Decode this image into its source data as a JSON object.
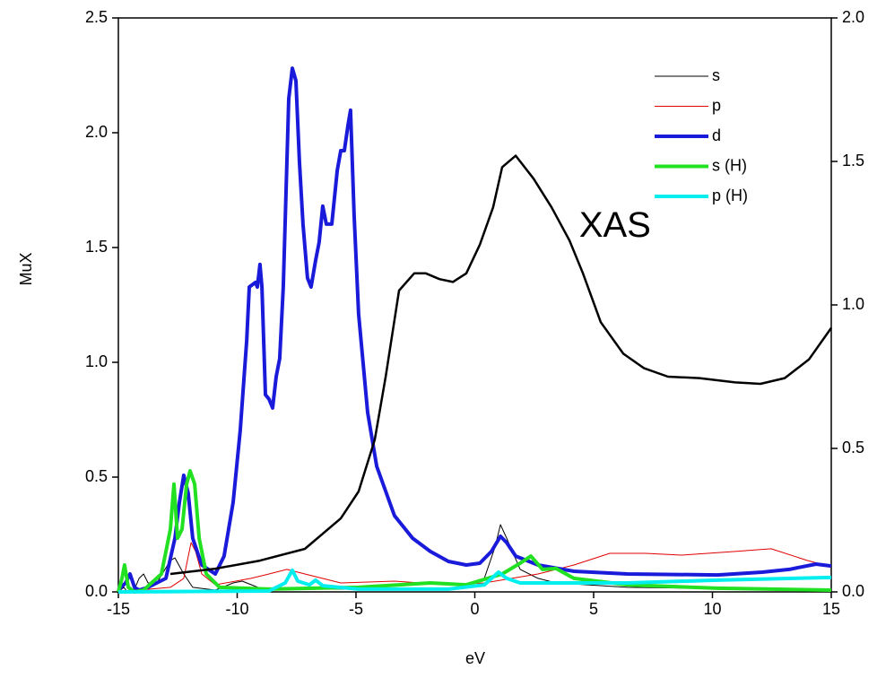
{
  "chart_data": {
    "type": "line",
    "xlabel": "eV",
    "ylabel": "MuX",
    "annotations": [
      {
        "text": "XAS",
        "x": 5.9,
        "y": 1.27
      }
    ],
    "xlim": [
      -15,
      15
    ],
    "xticks": [
      -15,
      -10,
      -5,
      0,
      5,
      10,
      15
    ],
    "ylim": [
      0,
      2.5
    ],
    "yticks": [
      {
        "value": 0,
        "label": "0.0"
      },
      0.5,
      {
        "value": 1,
        "label": "1.0"
      },
      1.5,
      {
        "value": 2,
        "label": "2.0"
      },
      2.5
    ],
    "y2lim": [
      0,
      2.0
    ],
    "y2ticks": [
      {
        "value": 0,
        "label": "0.0"
      },
      0.5,
      {
        "value": 1,
        "label": "1.0"
      },
      1.5,
      {
        "value": 2,
        "label": "2.0"
      }
    ],
    "legend": "upper right",
    "series": [
      {
        "name": "s",
        "color": "#000000",
        "width": 1,
        "x": [
          -15,
          -14.77,
          -14.62,
          -14.32,
          -14.13,
          -13.94,
          -13.75,
          -13.38,
          -12.81,
          -12.62,
          -12.25,
          -11.87,
          -10.92,
          -10.17,
          -9.79,
          -9.04,
          -6.77,
          -3.0,
          -0.36,
          0.4,
          0.85,
          1.08,
          1.34,
          1.91,
          2.66,
          3.42,
          6.43,
          15
        ],
        "values": [
          0,
          0.02,
          0,
          0.012,
          0.059,
          0.078,
          0.039,
          0.039,
          0.137,
          0.148,
          0.078,
          0.02,
          0.008,
          0.039,
          0.047,
          0.016,
          0.012,
          0.012,
          0.02,
          0.059,
          0.195,
          0.293,
          0.234,
          0.098,
          0.059,
          0.039,
          0.02,
          0.008
        ]
      },
      {
        "name": "p",
        "color": "#e00000",
        "width": 1,
        "x": [
          -15,
          -12.81,
          -12.25,
          -11.94,
          -11.75,
          -11.49,
          -10.92,
          -9.42,
          -8.66,
          -7.91,
          -7.15,
          -5.64,
          -3.38,
          -1.11,
          0.4,
          2.66,
          4.17,
          5.68,
          7.19,
          8.7,
          10.96,
          12.47,
          13.98,
          15
        ],
        "values": [
          0,
          0.02,
          0.059,
          0.215,
          0.176,
          0.078,
          0.031,
          0.059,
          0.078,
          0.098,
          0.078,
          0.039,
          0.047,
          0.031,
          0.039,
          0.078,
          0.117,
          0.168,
          0.168,
          0.16,
          0.176,
          0.188,
          0.137,
          0.109
        ]
      },
      {
        "name": "d",
        "color": "#1a1adb",
        "width": 4,
        "x": [
          -15,
          -14.7,
          -14.51,
          -14.32,
          -14.13,
          -13.75,
          -13.0,
          -12.62,
          -12.43,
          -12.25,
          -12.06,
          -11.87,
          -11.49,
          -10.92,
          -10.55,
          -10.17,
          -9.87,
          -9.6,
          -9.49,
          -9.23,
          -9.15,
          -9.04,
          -8.96,
          -8.81,
          -8.66,
          -8.51,
          -8.36,
          -8.21,
          -8.06,
          -7.83,
          -7.68,
          -7.53,
          -7.38,
          -7.23,
          -7.04,
          -6.89,
          -6.7,
          -6.55,
          -6.4,
          -6.25,
          -6.02,
          -5.79,
          -5.64,
          -5.49,
          -5.34,
          -5.23,
          -5.08,
          -4.89,
          -4.51,
          -4.13,
          -3.38,
          -2.62,
          -1.87,
          -1.11,
          -0.36,
          0.21,
          0.7,
          1.08,
          1.34,
          1.72,
          2.66,
          4.17,
          6.43,
          10.21,
          12.09,
          13.23,
          14.36,
          15
        ],
        "values": [
          0.008,
          0.039,
          0.078,
          0.02,
          0.008,
          0.02,
          0.059,
          0.234,
          0.391,
          0.508,
          0.43,
          0.234,
          0.117,
          0.078,
          0.156,
          0.391,
          0.703,
          1.094,
          1.328,
          1.348,
          1.328,
          1.426,
          1.328,
          0.859,
          0.84,
          0.801,
          0.938,
          1.016,
          1.328,
          2.148,
          2.281,
          2.227,
          1.875,
          1.602,
          1.367,
          1.328,
          1.445,
          1.523,
          1.68,
          1.602,
          1.602,
          1.836,
          1.922,
          1.922,
          2.031,
          2.098,
          1.641,
          1.211,
          0.781,
          0.547,
          0.332,
          0.234,
          0.176,
          0.133,
          0.117,
          0.125,
          0.176,
          0.242,
          0.215,
          0.156,
          0.117,
          0.09,
          0.078,
          0.074,
          0.086,
          0.098,
          0.121,
          0.113
        ]
      },
      {
        "name": "s (H)",
        "color": "#22e022",
        "width": 4,
        "x": [
          -15,
          -14.85,
          -14.74,
          -14.58,
          -14.32,
          -13.94,
          -13.19,
          -12.81,
          -12.66,
          -12.51,
          -12.32,
          -12.13,
          -11.98,
          -11.79,
          -11.6,
          -11.3,
          -10.74,
          -8.66,
          -4.89,
          -1.87,
          -0.36,
          1.15,
          1.91,
          2.36,
          2.85,
          3.42,
          4.17,
          6.43,
          10.21,
          15
        ],
        "values": [
          0,
          0.059,
          0.117,
          0.02,
          0,
          0.008,
          0.078,
          0.273,
          0.469,
          0.234,
          0.273,
          0.469,
          0.527,
          0.469,
          0.234,
          0.078,
          0.02,
          0.012,
          0.02,
          0.039,
          0.031,
          0.078,
          0.125,
          0.156,
          0.098,
          0.102,
          0.059,
          0.031,
          0.016,
          0.008
        ]
      },
      {
        "name": "p (H)",
        "color": "#00eeee",
        "width": 4,
        "x": [
          -15,
          -8.66,
          -7.98,
          -7.68,
          -7.45,
          -6.96,
          -6.7,
          -6.4,
          -4.89,
          -1.11,
          0.4,
          1.0,
          1.34,
          1.91,
          3.42,
          6.43,
          10.21,
          15
        ],
        "values": [
          0,
          0.004,
          0.039,
          0.094,
          0.047,
          0.031,
          0.051,
          0.027,
          0.012,
          0.012,
          0.031,
          0.086,
          0.059,
          0.039,
          0.039,
          0.039,
          0.051,
          0.063
        ]
      },
      {
        "color": "#000000",
        "width": 2.5,
        "axis": "y2",
        "x": [
          -12.81,
          -10.92,
          -9.04,
          -7.15,
          -5.64,
          -4.89,
          -4.21,
          -3.75,
          -3.19,
          -2.55,
          -2.06,
          -1.49,
          -0.92,
          -0.36,
          0.21,
          0.77,
          1.15,
          1.72,
          2.47,
          3.23,
          3.98,
          4.55,
          5.3,
          6.25,
          7.11,
          8.13,
          9.45,
          10.96,
          12.02,
          13.04,
          14.06,
          15
        ],
        "values": [
          0.0625,
          0.081,
          0.109,
          0.15,
          0.256,
          0.35,
          0.53,
          0.75,
          1.05,
          1.11,
          1.11,
          1.09,
          1.08,
          1.11,
          1.21,
          1.34,
          1.48,
          1.52,
          1.44,
          1.34,
          1.225,
          1.11,
          0.94,
          0.83,
          0.78,
          0.75,
          0.745,
          0.73,
          0.725,
          0.745,
          0.81,
          0.92
        ]
      }
    ]
  }
}
